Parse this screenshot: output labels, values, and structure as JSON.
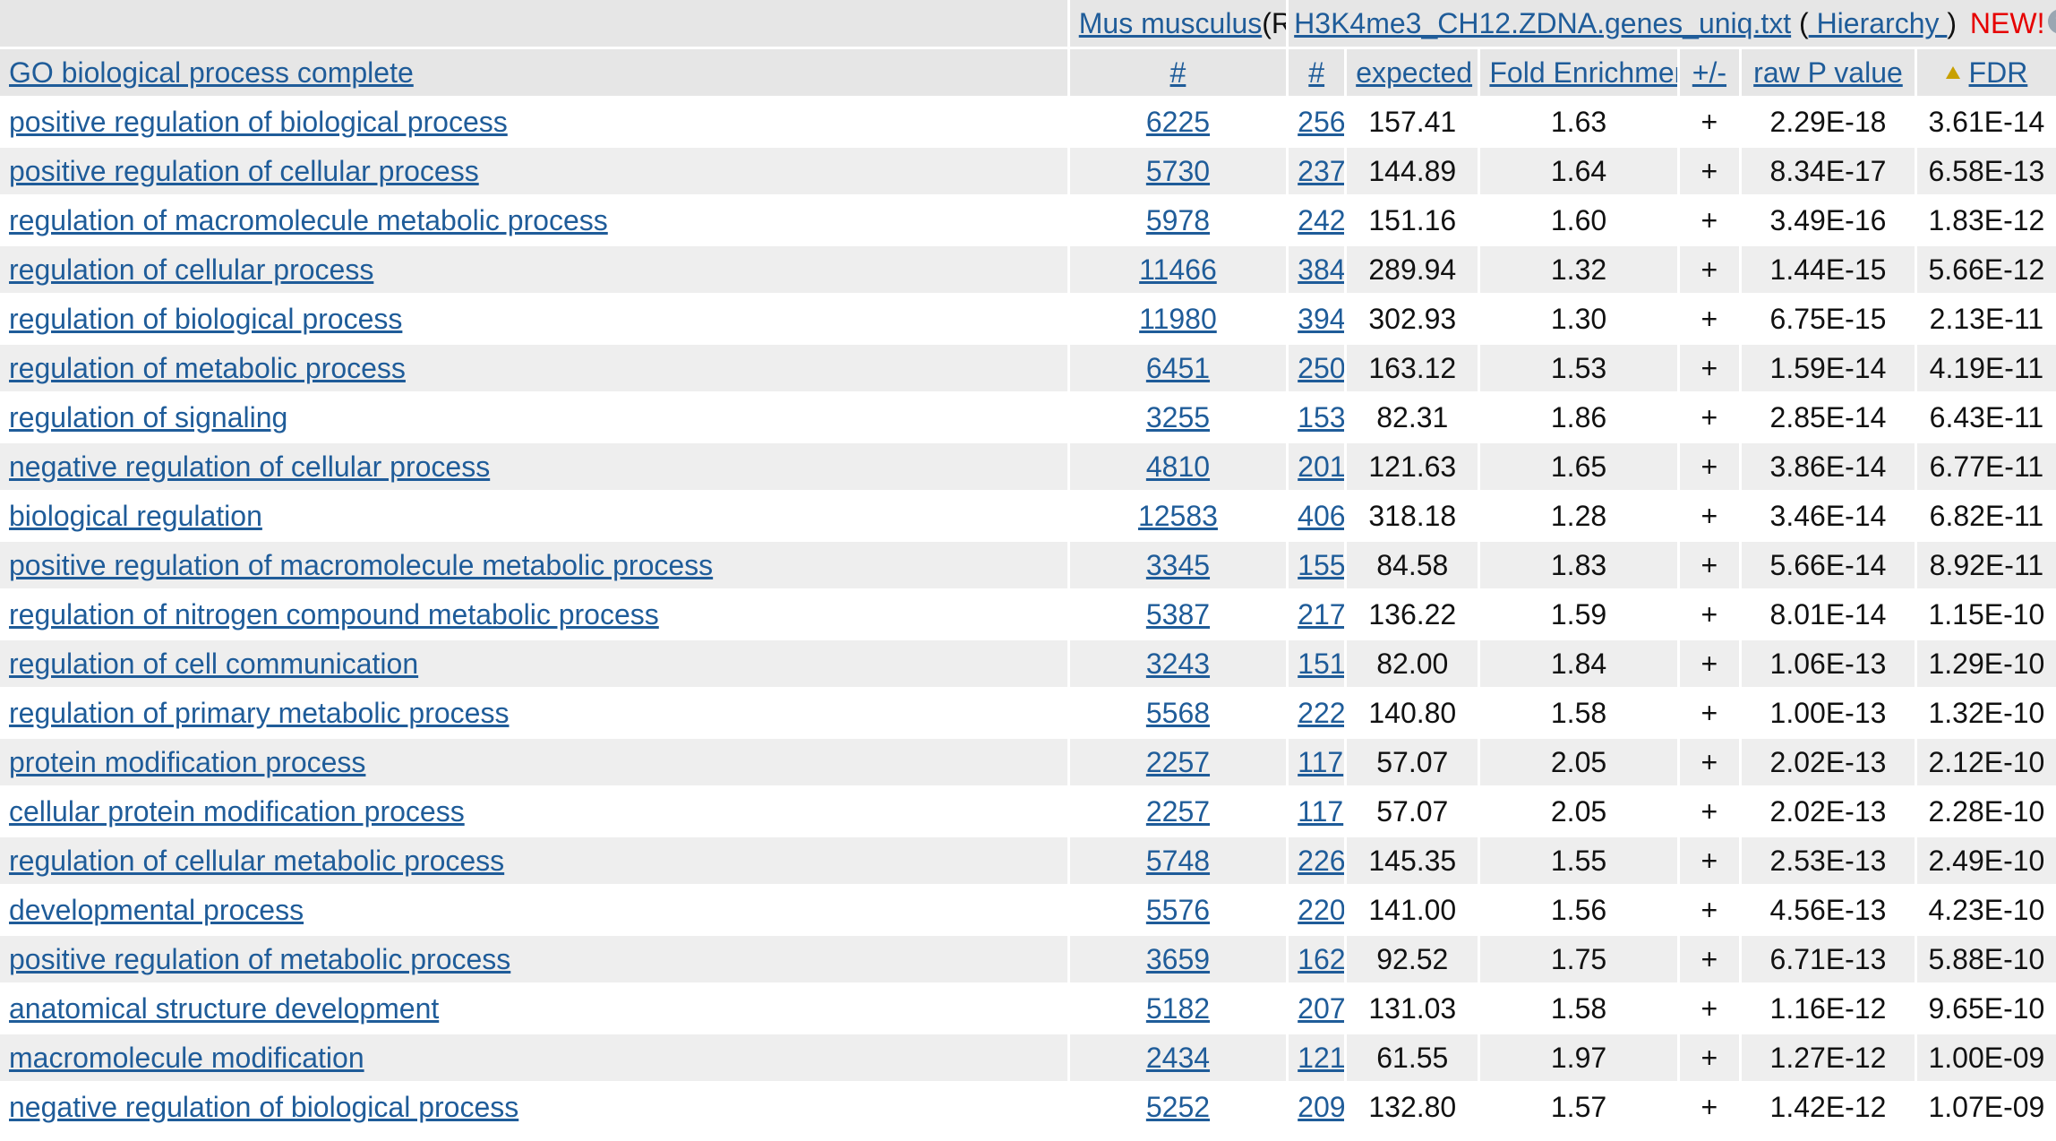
{
  "header": {
    "ref_organism": "Mus musculus",
    "ref_tag": "(REF)",
    "list_name": "H3K4me3_CH12.ZDNA.genes_uniq.txt",
    "hierarchy_open": "(",
    "hierarchy_label": " Hierarchy ",
    "hierarchy_close": ")",
    "new_badge": "NEW!",
    "help_close": ")"
  },
  "columns": {
    "category": "GO biological process complete",
    "ref_count": "#",
    "count": "#",
    "expected": "expected",
    "fold_enrichment": "Fold Enrichment",
    "direction": "+/-",
    "raw_p": "raw P value",
    "fdr": "FDR"
  },
  "rows": [
    {
      "term": "positive regulation of biological process",
      "ref": "6225",
      "num": "256",
      "expected": "157.41",
      "fe": "1.63",
      "dir": "+",
      "p": "2.29E-18",
      "fdr": "3.61E-14"
    },
    {
      "term": "positive regulation of cellular process",
      "ref": "5730",
      "num": "237",
      "expected": "144.89",
      "fe": "1.64",
      "dir": "+",
      "p": "8.34E-17",
      "fdr": "6.58E-13"
    },
    {
      "term": "regulation of macromolecule metabolic process",
      "ref": "5978",
      "num": "242",
      "expected": "151.16",
      "fe": "1.60",
      "dir": "+",
      "p": "3.49E-16",
      "fdr": "1.83E-12"
    },
    {
      "term": "regulation of cellular process",
      "ref": "11466",
      "num": "384",
      "expected": "289.94",
      "fe": "1.32",
      "dir": "+",
      "p": "1.44E-15",
      "fdr": "5.66E-12"
    },
    {
      "term": "regulation of biological process",
      "ref": "11980",
      "num": "394",
      "expected": "302.93",
      "fe": "1.30",
      "dir": "+",
      "p": "6.75E-15",
      "fdr": "2.13E-11"
    },
    {
      "term": "regulation of metabolic process",
      "ref": "6451",
      "num": "250",
      "expected": "163.12",
      "fe": "1.53",
      "dir": "+",
      "p": "1.59E-14",
      "fdr": "4.19E-11"
    },
    {
      "term": "regulation of signaling",
      "ref": "3255",
      "num": "153",
      "expected": "82.31",
      "fe": "1.86",
      "dir": "+",
      "p": "2.85E-14",
      "fdr": "6.43E-11"
    },
    {
      "term": "negative regulation of cellular process",
      "ref": "4810",
      "num": "201",
      "expected": "121.63",
      "fe": "1.65",
      "dir": "+",
      "p": "3.86E-14",
      "fdr": "6.77E-11"
    },
    {
      "term": "biological regulation",
      "ref": "12583",
      "num": "406",
      "expected": "318.18",
      "fe": "1.28",
      "dir": "+",
      "p": "3.46E-14",
      "fdr": "6.82E-11"
    },
    {
      "term": "positive regulation of macromolecule metabolic process",
      "ref": "3345",
      "num": "155",
      "expected": "84.58",
      "fe": "1.83",
      "dir": "+",
      "p": "5.66E-14",
      "fdr": "8.92E-11"
    },
    {
      "term": "regulation of nitrogen compound metabolic process",
      "ref": "5387",
      "num": "217",
      "expected": "136.22",
      "fe": "1.59",
      "dir": "+",
      "p": "8.01E-14",
      "fdr": "1.15E-10"
    },
    {
      "term": "regulation of cell communication",
      "ref": "3243",
      "num": "151",
      "expected": "82.00",
      "fe": "1.84",
      "dir": "+",
      "p": "1.06E-13",
      "fdr": "1.29E-10"
    },
    {
      "term": "regulation of primary metabolic process",
      "ref": "5568",
      "num": "222",
      "expected": "140.80",
      "fe": "1.58",
      "dir": "+",
      "p": "1.00E-13",
      "fdr": "1.32E-10"
    },
    {
      "term": "protein modification process",
      "ref": "2257",
      "num": "117",
      "expected": "57.07",
      "fe": "2.05",
      "dir": "+",
      "p": "2.02E-13",
      "fdr": "2.12E-10"
    },
    {
      "term": "cellular protein modification process",
      "ref": "2257",
      "num": "117",
      "expected": "57.07",
      "fe": "2.05",
      "dir": "+",
      "p": "2.02E-13",
      "fdr": "2.28E-10"
    },
    {
      "term": "regulation of cellular metabolic process",
      "ref": "5748",
      "num": "226",
      "expected": "145.35",
      "fe": "1.55",
      "dir": "+",
      "p": "2.53E-13",
      "fdr": "2.49E-10"
    },
    {
      "term": "developmental process",
      "ref": "5576",
      "num": "220",
      "expected": "141.00",
      "fe": "1.56",
      "dir": "+",
      "p": "4.56E-13",
      "fdr": "4.23E-10"
    },
    {
      "term": "positive regulation of metabolic process",
      "ref": "3659",
      "num": "162",
      "expected": "92.52",
      "fe": "1.75",
      "dir": "+",
      "p": "6.71E-13",
      "fdr": "5.88E-10"
    },
    {
      "term": "anatomical structure development",
      "ref": "5182",
      "num": "207",
      "expected": "131.03",
      "fe": "1.58",
      "dir": "+",
      "p": "1.16E-12",
      "fdr": "9.65E-10"
    },
    {
      "term": "macromolecule modification",
      "ref": "2434",
      "num": "121",
      "expected": "61.55",
      "fe": "1.97",
      "dir": "+",
      "p": "1.27E-12",
      "fdr": "1.00E-09"
    },
    {
      "term": "negative regulation of biological process",
      "ref": "5252",
      "num": "209",
      "expected": "132.80",
      "fe": "1.57",
      "dir": "+",
      "p": "1.42E-12",
      "fdr": "1.07E-09"
    }
  ],
  "icons": {
    "help": "help-icon",
    "sort": "sort-ascending-icon"
  },
  "colors": {
    "link": "#1f5c99",
    "new_badge": "#e60000",
    "header_bg": "#e6e6e6",
    "row_alt_bg": "#eeeeee"
  }
}
